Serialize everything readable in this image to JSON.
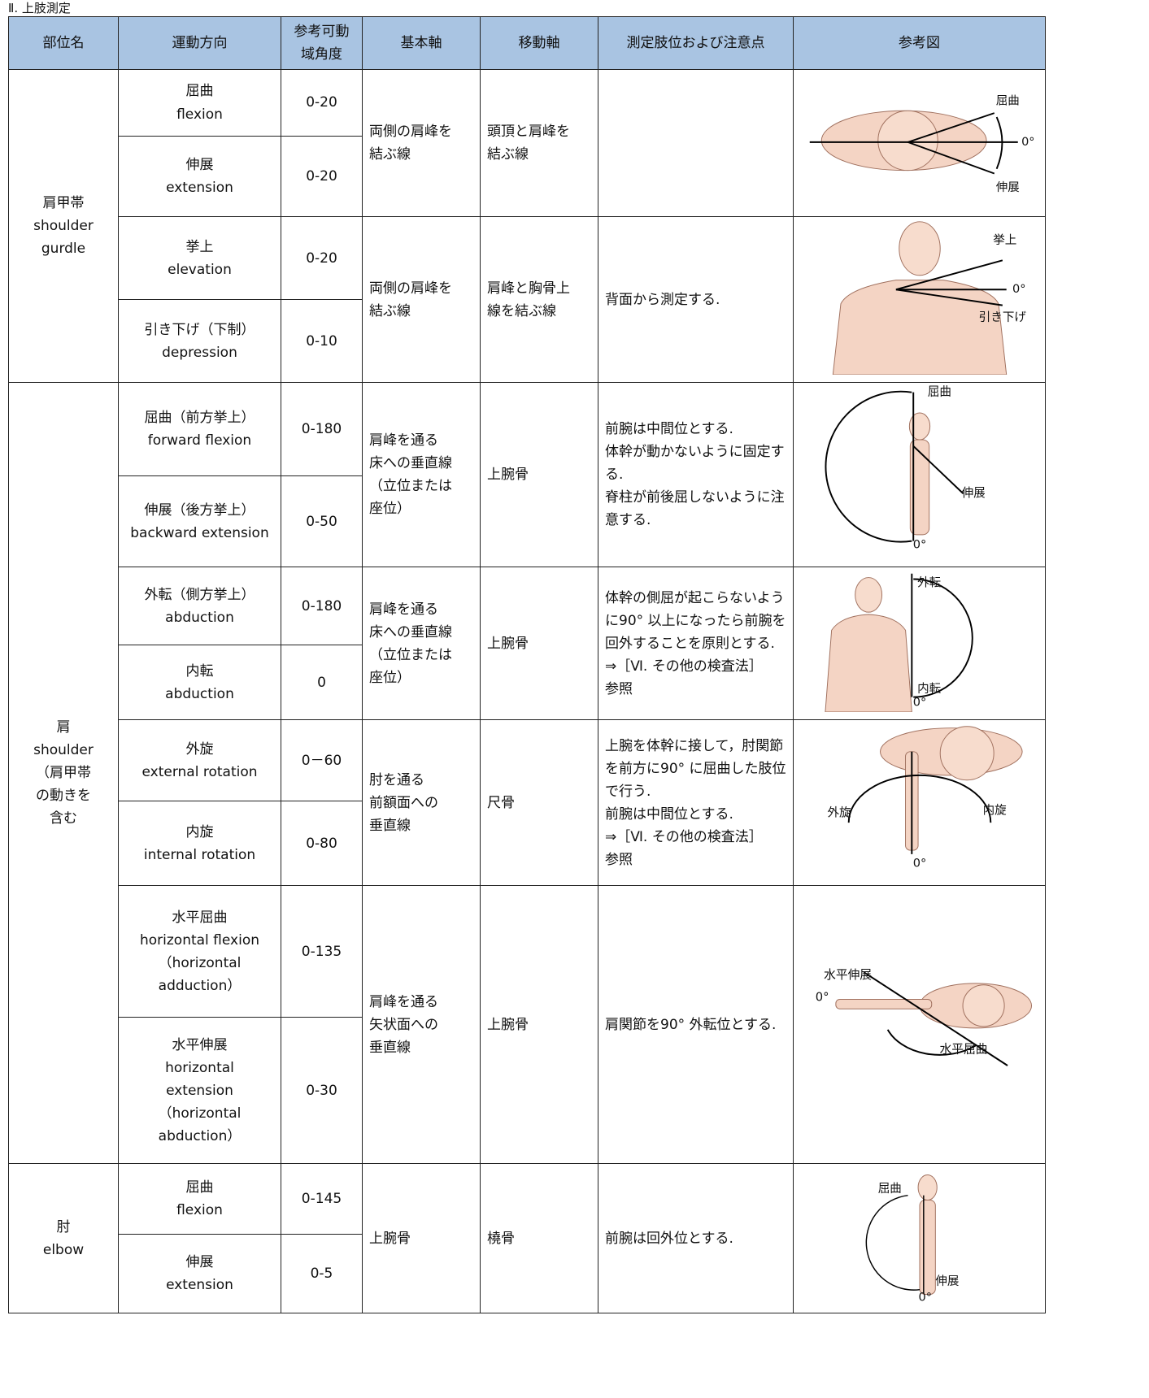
{
  "heading": "Ⅱ. 上肢測定",
  "table": {
    "header": [
      "部位名",
      "運動方向",
      "参考可動域角度",
      "基本軸",
      "移動軸",
      "測定肢位および注意点",
      "参考図"
    ],
    "sections": [
      {
        "part": [
          "肩甲帯",
          "shoulder",
          "gurdle"
        ],
        "blocks": [
          {
            "movements": [
              {
                "direction": [
                  "屈曲",
                  "flexion"
                ],
                "range": "0-20"
              },
              {
                "direction": [
                  "伸展",
                  "extension"
                ],
                "range": "0-20"
              }
            ],
            "basic_axis": [
              "両側の肩峰を",
              "結ぶ線"
            ],
            "moving_axis": [
              "頭頂と肩峰を",
              "結ぶ線"
            ],
            "notes": [],
            "figure": [
              "屈曲",
              "0°",
              "伸展"
            ]
          },
          {
            "movements": [
              {
                "direction": [
                  "挙上",
                  "elevation"
                ],
                "range": "0-20"
              },
              {
                "direction": [
                  "引き下げ（下制）",
                  "depression"
                ],
                "range": "0-10"
              }
            ],
            "basic_axis": [
              "両側の肩峰を",
              "結ぶ線"
            ],
            "moving_axis": [
              "肩峰と胸骨上",
              "線を結ぶ線"
            ],
            "notes": [
              "背面から測定する."
            ],
            "figure": [
              "挙上",
              "0°",
              "引き下げ"
            ]
          }
        ]
      },
      {
        "part": [
          "肩",
          "shoulder",
          "（肩甲帯",
          "の動きを",
          "含む"
        ],
        "blocks": [
          {
            "movements": [
              {
                "direction": [
                  "屈曲（前方挙上）",
                  "forward flexion"
                ],
                "range": "0-180"
              },
              {
                "direction": [
                  "伸展（後方挙上）",
                  "backward extension"
                ],
                "range": "0-50"
              }
            ],
            "basic_axis": [
              "肩峰を通る",
              "床への垂直線",
              "（立位または",
              "座位）"
            ],
            "moving_axis": [
              "上腕骨"
            ],
            "notes": [
              "前腕は中間位とする.",
              "体幹が動かないように固定する.",
              "脊柱が前後屈しないように注意する."
            ],
            "figure": [
              "屈曲",
              "伸展",
              "0°"
            ]
          },
          {
            "movements": [
              {
                "direction": [
                  "外転（側方挙上）",
                  "abduction"
                ],
                "range": "0-180"
              },
              {
                "direction": [
                  "内転",
                  "abduction"
                ],
                "range": "0"
              }
            ],
            "basic_axis": [
              "肩峰を通る",
              "床への垂直線",
              "（立位または",
              "座位）"
            ],
            "moving_axis": [
              "上腕骨"
            ],
            "notes": [
              "体幹の側屈が起こらないように90° 以上になったら前腕を回外することを原則とする.",
              "⇒［Ⅵ. その他の検査法］",
              "参照"
            ],
            "figure": [
              "外転",
              "内転",
              "0°"
            ]
          },
          {
            "movements": [
              {
                "direction": [
                  "外旋",
                  "external rotation"
                ],
                "range": "0－60"
              },
              {
                "direction": [
                  "内旋",
                  "internal rotation"
                ],
                "range": "0-80"
              }
            ],
            "basic_axis": [
              "肘を通る",
              "前額面への",
              "垂直線"
            ],
            "moving_axis": [
              "尺骨"
            ],
            "notes": [
              "上腕を体幹に接して，肘関節を前方に90° に屈曲した肢位で行う.",
              "前腕は中間位とする.",
              "⇒［Ⅵ. その他の検査法］",
              "参照"
            ],
            "figure": [
              "外旋",
              "内旋",
              "0°"
            ]
          },
          {
            "movements": [
              {
                "direction": [
                  "水平屈曲",
                  "horizontal flexion",
                  "（horizontal",
                  "adduction）"
                ],
                "range": "0-135"
              },
              {
                "direction": [
                  "水平伸展",
                  "horizontal",
                  "extension",
                  "（horizontal",
                  "abduction）"
                ],
                "range": "0-30"
              }
            ],
            "basic_axis": [
              "肩峰を通る",
              "矢状面への",
              "垂直線"
            ],
            "moving_axis": [
              "上腕骨"
            ],
            "notes": [
              "肩関節を90° 外転位とする."
            ],
            "figure": [
              "水平伸展",
              "0°",
              "水平屈曲"
            ]
          }
        ]
      },
      {
        "part": [
          "肘",
          "elbow"
        ],
        "blocks": [
          {
            "movements": [
              {
                "direction": [
                  "屈曲",
                  "flexion"
                ],
                "range": "0-145"
              },
              {
                "direction": [
                  "伸展",
                  "extension"
                ],
                "range": "0-5"
              }
            ],
            "basic_axis": [
              "上腕骨"
            ],
            "moving_axis": [
              "橈骨"
            ],
            "notes": [
              "前腕は回外位とする."
            ],
            "figure": [
              "屈曲",
              "伸展",
              "0°"
            ]
          }
        ]
      }
    ]
  }
}
